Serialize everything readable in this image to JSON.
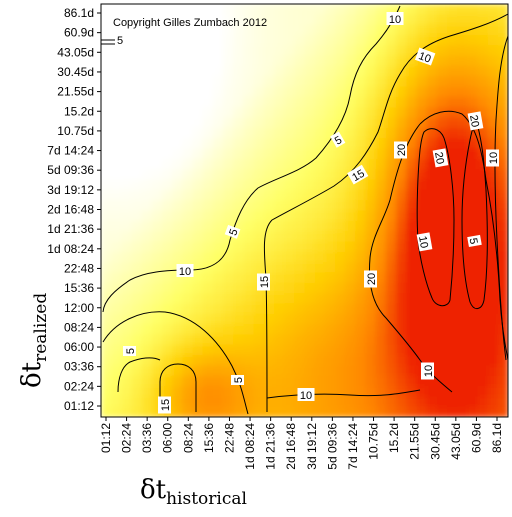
{
  "chart_data": {
    "type": "heatmap",
    "title": "",
    "annotation": "Copyright Gilles Zumbach 2012",
    "xlabel": {
      "symbol": "δt",
      "subscript": "historical"
    },
    "ylabel": {
      "symbol": "δt",
      "subscript": "realized"
    },
    "x_ticks": [
      "01:12",
      "02:24",
      "03:36",
      "06:00",
      "08:24",
      "15:36",
      "22:48",
      "1d 08:24",
      "1d 21:36",
      "2d 16:48",
      "3d 19:12",
      "5d 09:36",
      "7d 14:24",
      "10.75d",
      "15.2d",
      "21.55d",
      "30.45d",
      "43.05d",
      "60.9d",
      "86.1d"
    ],
    "y_ticks": [
      "01:12",
      "02:24",
      "03:36",
      "06:00",
      "08:24",
      "12:00",
      "15:36",
      "22:48",
      "1d 08:24",
      "1d 21:36",
      "2d 16:48",
      "3d 19:12",
      "5d 09:36",
      "7d 14:24",
      "10.75d",
      "15.2d",
      "21.55d",
      "30.45d",
      "43.05d",
      "60.9d",
      "86.1d"
    ],
    "contour_levels": [
      5,
      10,
      15,
      20
    ],
    "contour_labels": [
      "10",
      "5",
      "5",
      "10",
      "5",
      "5",
      "10",
      "15",
      "15",
      "20",
      "20",
      "20",
      "20",
      "10",
      "5",
      "10",
      "15",
      "10",
      "10",
      "5"
    ],
    "colorscale": [
      "#ffffff",
      "#ffff66",
      "#ffcc00",
      "#ff8800",
      "#ee2200"
    ],
    "grid": false,
    "legend": "none"
  }
}
